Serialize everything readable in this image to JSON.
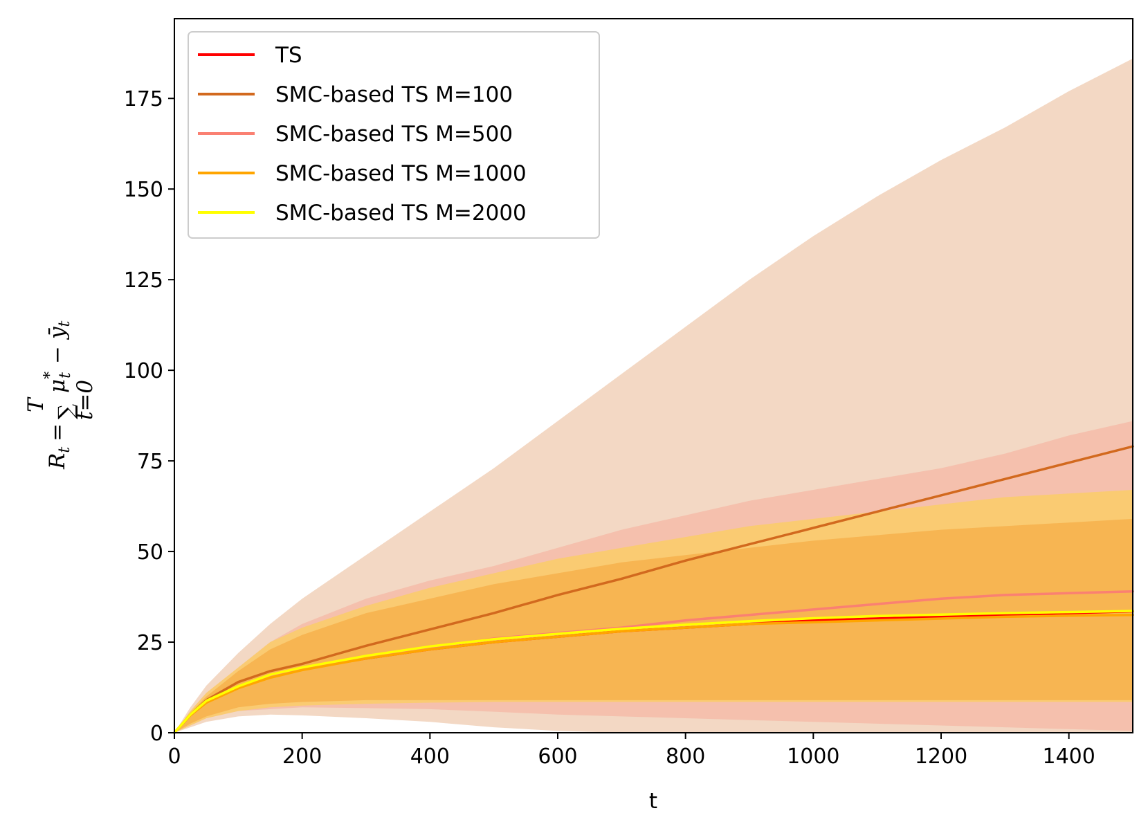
{
  "chart_data": {
    "type": "line",
    "title": "",
    "xlabel": "t",
    "ylabel": "R_t = Σ_{t=0}^{T} μ*_t − ȳ_t",
    "ylabel_parts": {
      "lhs": "R",
      "lhs_sub": "t",
      "eq": "=",
      "sum": "∑",
      "sum_top": "T",
      "sum_bottom": "t=0",
      "mu": "μ",
      "mu_sup": "*",
      "mu_sub": "t",
      "minus": "−",
      "ybar": "ȳ",
      "ybar_sub": "t"
    },
    "xlim": [
      0,
      1500
    ],
    "ylim": [
      0,
      197
    ],
    "xticks": [
      0,
      200,
      400,
      600,
      800,
      1000,
      1200,
      1400
    ],
    "yticks": [
      0,
      25,
      50,
      75,
      100,
      125,
      150,
      175
    ],
    "grid": false,
    "legend_position": "upper-left",
    "x": [
      0,
      25,
      50,
      100,
      150,
      200,
      300,
      400,
      500,
      600,
      700,
      800,
      900,
      1000,
      1100,
      1200,
      1300,
      1400,
      1500
    ],
    "bands": [
      {
        "series": "SMC-based TS M=100",
        "color": "#efcbb0",
        "opacity": 0.75,
        "upper": [
          0,
          7,
          13,
          22,
          30,
          37,
          49,
          61,
          73,
          86,
          99,
          112,
          125,
          137,
          148,
          158,
          167,
          177,
          186
        ],
        "lower": [
          0,
          1.5,
          3,
          4.5,
          5,
          4.8,
          4,
          3,
          1.5,
          0.5,
          0,
          0,
          0,
          0,
          0,
          0,
          0,
          0,
          0
        ]
      },
      {
        "series": "SMC-based TS M=500",
        "color": "#f5ad9a",
        "opacity": 0.55,
        "upper": [
          0,
          6,
          11,
          18,
          25,
          30,
          37,
          42,
          46,
          51,
          56,
          60,
          64,
          67,
          70,
          73,
          77,
          82,
          86
        ],
        "lower": [
          0,
          2,
          4,
          6,
          6.5,
          7,
          6.8,
          6.5,
          5.8,
          5,
          4.5,
          4,
          3.5,
          3,
          2.5,
          2,
          1.5,
          1,
          0.5
        ]
      },
      {
        "series": "SMC-based TS M=1000",
        "color": "#fbcd63",
        "opacity": 0.8,
        "upper": [
          0,
          6,
          11,
          18,
          25,
          29,
          35,
          40,
          44,
          48,
          51,
          54,
          57,
          59,
          61,
          63,
          65,
          66,
          67
        ],
        "lower": [
          0,
          2,
          4,
          6,
          7,
          7.5,
          8,
          8.3,
          8.5,
          8.5,
          8.5,
          8.5,
          8.5,
          8.5,
          8.5,
          8.5,
          8.5,
          8.5,
          8.5
        ]
      },
      {
        "series": "TS",
        "color": "#f5ad48",
        "opacity": 0.75,
        "upper": [
          0,
          5.5,
          10,
          17,
          23,
          27,
          33,
          37,
          41,
          44,
          47,
          49,
          51,
          53,
          54.5,
          56,
          57,
          58,
          59
        ],
        "lower": [
          0,
          2.5,
          4.5,
          7,
          8,
          8.5,
          9,
          9,
          9,
          9,
          9,
          9,
          9,
          9,
          9,
          9,
          9,
          9,
          9
        ]
      }
    ],
    "series": [
      {
        "name": "TS",
        "color": "#ff0000",
        "values": [
          0,
          5,
          8.5,
          12.5,
          15.5,
          17.5,
          20.5,
          23,
          25,
          26.5,
          28,
          29,
          30,
          31,
          31.5,
          32,
          32.5,
          33,
          33.5
        ]
      },
      {
        "name": "SMC-based TS M=100",
        "color": "#d2691e",
        "values": [
          0,
          5,
          9,
          14,
          17,
          19,
          24,
          28.5,
          33,
          38,
          42.5,
          47.5,
          52,
          56.5,
          61,
          65.5,
          70,
          74.5,
          79
        ]
      },
      {
        "name": "SMC-based TS M=500",
        "color": "#fa8072",
        "values": [
          0,
          5,
          8.5,
          12.5,
          15.5,
          17.5,
          21,
          23.5,
          26,
          27.5,
          29,
          31,
          32.5,
          34,
          35.5,
          37,
          38,
          38.5,
          39
        ]
      },
      {
        "name": "SMC-based TS M=1000",
        "color": "#ffa500",
        "values": [
          0,
          4.8,
          8.3,
          12.3,
          15.2,
          17.3,
          20.5,
          23,
          25,
          26.5,
          28,
          29,
          30,
          30.5,
          31,
          31.5,
          32,
          32.3,
          32.5
        ]
      },
      {
        "name": "SMC-based TS M=2000",
        "color": "#ffff00",
        "values": [
          0,
          5,
          8.8,
          12.8,
          16,
          18,
          21.2,
          23.8,
          25.8,
          27.3,
          28.7,
          29.8,
          30.8,
          31.6,
          32.2,
          32.6,
          33,
          33.3,
          33.6
        ]
      }
    ]
  }
}
